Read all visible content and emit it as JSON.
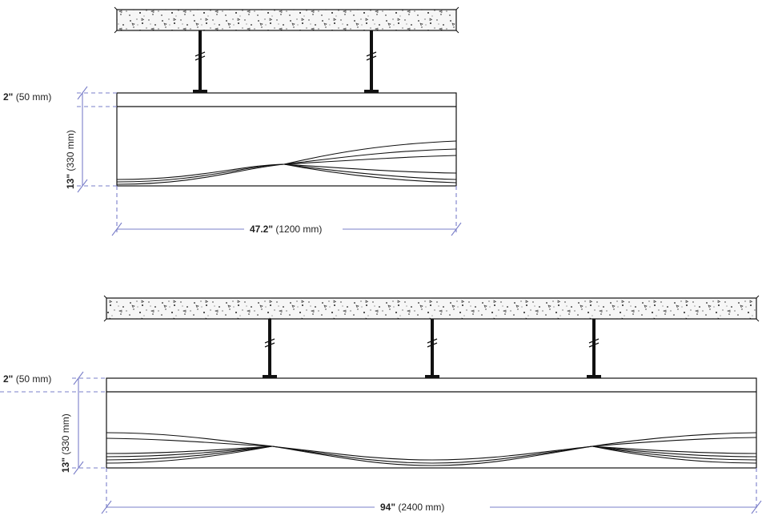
{
  "diagrams": [
    {
      "id": "small",
      "thickness": {
        "value": "2\"",
        "metric": " (50 mm)"
      },
      "height": {
        "value": "13\"",
        "metric": " (330 mm)"
      },
      "width": {
        "value": "47.2\"",
        "metric": " (1200 mm)"
      },
      "hangers": 2
    },
    {
      "id": "large",
      "thickness": {
        "value": "2\"",
        "metric": " (50 mm)"
      },
      "height": {
        "value": "13\"",
        "metric": " (330 mm)"
      },
      "width": {
        "value": "94\"",
        "metric": " (2400 mm)"
      },
      "hangers": 3
    }
  ],
  "colors": {
    "line": "#111111",
    "dimension": "#7a7fc9",
    "concrete_fill": "#f4f4f4"
  }
}
